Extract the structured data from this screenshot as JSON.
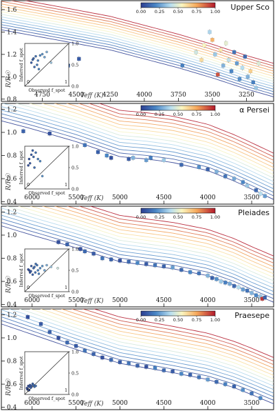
{
  "chart_data": [
    {
      "type": "scatter",
      "title": "Upper Sco",
      "xlabel": "Teff (K)",
      "ylabel": "R/R☉",
      "xlim": [
        5050,
        3050
      ],
      "ylim": [
        0.78,
        1.68
      ],
      "xticks": [
        4750,
        4500,
        4250,
        4000,
        3750,
        3500,
        3250
      ],
      "yticks": [
        0.8,
        1.0,
        1.2,
        1.4,
        1.6
      ],
      "colorbar": {
        "min": 0,
        "max": 1,
        "ticks": [
          "0.00",
          "0.25",
          "0.50",
          "0.75",
          "1.00"
        ]
      },
      "model_tracks_count": 14,
      "track_base": [
        [
          5050,
          1.42
        ],
        [
          4600,
          1.32
        ],
        [
          4250,
          1.24
        ],
        [
          4000,
          1.16
        ],
        [
          3750,
          1.08
        ],
        [
          3500,
          0.99
        ],
        [
          3250,
          0.89
        ],
        [
          3050,
          0.82
        ]
      ],
      "track_shift": 0.3,
      "points": [
        {
          "teff": 4660,
          "r": 1.21,
          "f": 0.05
        },
        {
          "teff": 4610,
          "r": 1.18,
          "f": 0.1
        },
        {
          "teff": 4560,
          "r": 1.1,
          "f": 0.12
        },
        {
          "teff": 4480,
          "r": 1.16,
          "f": 0.08
        },
        {
          "teff": 3720,
          "r": 1.1,
          "f": 0.18
        },
        {
          "teff": 3620,
          "r": 1.22,
          "f": 0.45
        },
        {
          "teff": 3580,
          "r": 1.15,
          "f": 0.62
        },
        {
          "teff": 3560,
          "r": 1.28,
          "f": 0.55
        },
        {
          "teff": 3520,
          "r": 1.4,
          "f": 0.38
        },
        {
          "teff": 3500,
          "r": 1.33,
          "f": 0.72
        },
        {
          "teff": 3480,
          "r": 1.2,
          "f": 0.35
        },
        {
          "teff": 3460,
          "r": 1.02,
          "f": 0.9
        },
        {
          "teff": 3440,
          "r": 1.24,
          "f": 0.58
        },
        {
          "teff": 3420,
          "r": 1.1,
          "f": 0.3
        },
        {
          "teff": 3400,
          "r": 1.3,
          "f": 0.5
        },
        {
          "teff": 3380,
          "r": 1.15,
          "f": 0.42
        },
        {
          "teff": 3360,
          "r": 1.05,
          "f": 0.2
        },
        {
          "teff": 3340,
          "r": 1.22,
          "f": 0.15
        },
        {
          "teff": 3320,
          "r": 1.12,
          "f": 0.25
        },
        {
          "teff": 3300,
          "r": 0.98,
          "f": 0.22
        },
        {
          "teff": 3280,
          "r": 1.08,
          "f": 0.4
        },
        {
          "teff": 3260,
          "r": 1.18,
          "f": 0.12
        },
        {
          "teff": 3240,
          "r": 1.0,
          "f": 0.3
        },
        {
          "teff": 3220,
          "r": 1.05,
          "f": 0.65
        },
        {
          "teff": 3200,
          "r": 0.95,
          "f": 0.18
        },
        {
          "teff": 3180,
          "r": 0.9,
          "f": 0.35
        },
        {
          "teff": 3160,
          "r": 1.12,
          "f": 0.48
        }
      ],
      "inset": {
        "xlabel": "Observed f_spot",
        "ylabel": "Inferred f_spot",
        "yticks": [
          "0.0",
          "0.5",
          "1.0"
        ],
        "corner_labels": [
          "0",
          "1"
        ],
        "points": [
          [
            0.15,
            0.55
          ],
          [
            0.2,
            0.65
          ],
          [
            0.25,
            0.7
          ],
          [
            0.3,
            0.6
          ],
          [
            0.35,
            0.72
          ],
          [
            0.4,
            0.75
          ],
          [
            0.28,
            0.5
          ],
          [
            0.22,
            0.45
          ],
          [
            0.45,
            0.68
          ],
          [
            0.5,
            0.8
          ],
          [
            0.18,
            0.62
          ],
          [
            0.32,
            0.4
          ],
          [
            0.6,
            0.55
          ]
        ]
      }
    },
    {
      "type": "scatter",
      "title": "α Persei",
      "xlabel": "Teff (K)",
      "ylabel": "R/R☉",
      "xlim": [
        6350,
        3250
      ],
      "ylim": [
        0.38,
        1.25
      ],
      "xticks": [
        6000,
        5500,
        5000,
        4500,
        4000,
        3500
      ],
      "yticks": [
        0.4,
        0.6,
        0.8,
        1.0,
        1.2
      ],
      "colorbar": {
        "min": 0,
        "max": 1,
        "ticks": [
          "0.00",
          "0.25",
          "0.50",
          "0.75",
          "1.00"
        ]
      },
      "model_tracks_count": 14,
      "track_base": [
        [
          6350,
          1.1
        ],
        [
          6000,
          1.03
        ],
        [
          5500,
          0.92
        ],
        [
          5000,
          0.79
        ],
        [
          4700,
          0.77
        ],
        [
          4400,
          0.74
        ],
        [
          4000,
          0.67
        ],
        [
          3700,
          0.58
        ],
        [
          3500,
          0.51
        ],
        [
          3250,
          0.42
        ]
      ],
      "track_shift": 0.4,
      "points": [
        {
          "teff": 6100,
          "r": 1.01,
          "f": 0.1
        },
        {
          "teff": 5800,
          "r": 0.99,
          "f": 0.05
        },
        {
          "teff": 5400,
          "r": 0.89,
          "f": 0.15
        },
        {
          "teff": 5250,
          "r": 0.83,
          "f": 0.1
        },
        {
          "teff": 5150,
          "r": 0.8,
          "f": 0.2
        },
        {
          "teff": 5100,
          "r": 0.78,
          "f": 0.05
        },
        {
          "teff": 4900,
          "r": 0.77,
          "f": 0.08
        },
        {
          "teff": 4850,
          "r": 0.78,
          "f": 0.3
        },
        {
          "teff": 4700,
          "r": 0.76,
          "f": 0.25
        },
        {
          "teff": 4650,
          "r": 0.78,
          "f": 0.18
        },
        {
          "teff": 4500,
          "r": 0.76,
          "f": 0.35
        },
        {
          "teff": 4300,
          "r": 0.72,
          "f": 0.12
        },
        {
          "teff": 4100,
          "r": 0.7,
          "f": 0.22
        },
        {
          "teff": 4000,
          "r": 0.68,
          "f": 0.1
        },
        {
          "teff": 3900,
          "r": 0.66,
          "f": 0.3
        },
        {
          "teff": 3800,
          "r": 0.62,
          "f": 0.15
        },
        {
          "teff": 3700,
          "r": 0.6,
          "f": 0.28
        },
        {
          "teff": 3600,
          "r": 0.57,
          "f": 0.2
        },
        {
          "teff": 3550,
          "r": 0.54,
          "f": 0.35
        },
        {
          "teff": 3450,
          "r": 0.5,
          "f": 0.12
        },
        {
          "teff": 3400,
          "r": 0.47,
          "f": 0.4
        },
        {
          "teff": 3350,
          "r": 0.45,
          "f": 0.25
        }
      ],
      "inset": {
        "xlabel": "Observed f_spot",
        "ylabel": "Inferred f_spot",
        "yticks": [
          "0.0",
          "0.5",
          "1.0"
        ],
        "corner_labels": [
          "0",
          "1"
        ],
        "points": [
          [
            0.1,
            0.7
          ],
          [
            0.15,
            0.8
          ],
          [
            0.2,
            0.75
          ],
          [
            0.25,
            0.85
          ],
          [
            0.12,
            0.6
          ],
          [
            0.3,
            0.7
          ],
          [
            0.18,
            0.9
          ],
          [
            0.22,
            0.5
          ],
          [
            0.35,
            0.65
          ],
          [
            0.08,
            0.55
          ],
          [
            0.4,
            0.3
          ]
        ]
      }
    },
    {
      "type": "scatter",
      "title": "Pleiades",
      "xlabel": "Teff (K)",
      "ylabel": "R/R☉",
      "xlim": [
        6350,
        3250
      ],
      "ylim": [
        0.38,
        1.25
      ],
      "xticks": [
        6000,
        5500,
        5000,
        4500,
        4000,
        3500
      ],
      "yticks": [
        0.4,
        0.6,
        0.8,
        1.0,
        1.2
      ],
      "colorbar": {
        "min": 0,
        "max": 1,
        "ticks": [
          "0.00",
          "0.25",
          "0.50",
          "0.75",
          "1.00"
        ]
      },
      "model_tracks_count": 14,
      "track_base": [
        [
          6350,
          1.08
        ],
        [
          6000,
          1.0
        ],
        [
          5500,
          0.89
        ],
        [
          5000,
          0.77
        ],
        [
          4700,
          0.74
        ],
        [
          4400,
          0.71
        ],
        [
          4000,
          0.65
        ],
        [
          3700,
          0.57
        ],
        [
          3500,
          0.5
        ],
        [
          3250,
          0.42
        ]
      ],
      "track_shift": 0.4,
      "points": [
        {
          "teff": 5700,
          "r": 0.94,
          "f": 0.05
        },
        {
          "teff": 5600,
          "r": 0.92,
          "f": 0.1
        },
        {
          "teff": 5450,
          "r": 0.88,
          "f": 0.05
        },
        {
          "teff": 5400,
          "r": 0.86,
          "f": 0.12
        },
        {
          "teff": 5300,
          "r": 0.84,
          "f": 0.08
        },
        {
          "teff": 5200,
          "r": 0.8,
          "f": 0.15
        },
        {
          "teff": 5100,
          "r": 0.79,
          "f": 0.1
        },
        {
          "teff": 5000,
          "r": 0.78,
          "f": 0.05
        },
        {
          "teff": 4900,
          "r": 0.77,
          "f": 0.12
        },
        {
          "teff": 4800,
          "r": 0.76,
          "f": 0.2
        },
        {
          "teff": 4700,
          "r": 0.75,
          "f": 0.08
        },
        {
          "teff": 4600,
          "r": 0.74,
          "f": 0.15
        },
        {
          "teff": 4500,
          "r": 0.73,
          "f": 0.1
        },
        {
          "teff": 4400,
          "r": 0.72,
          "f": 0.25
        },
        {
          "teff": 4300,
          "r": 0.7,
          "f": 0.12
        },
        {
          "teff": 4200,
          "r": 0.68,
          "f": 0.2
        },
        {
          "teff": 4100,
          "r": 0.67,
          "f": 0.15
        },
        {
          "teff": 4000,
          "r": 0.65,
          "f": 0.3
        },
        {
          "teff": 3950,
          "r": 0.63,
          "f": 0.1
        },
        {
          "teff": 3900,
          "r": 0.62,
          "f": 0.22
        },
        {
          "teff": 3850,
          "r": 0.6,
          "f": 0.35
        },
        {
          "teff": 3800,
          "r": 0.59,
          "f": 0.18
        },
        {
          "teff": 3750,
          "r": 0.58,
          "f": 0.28
        },
        {
          "teff": 3700,
          "r": 0.56,
          "f": 0.12
        },
        {
          "teff": 3650,
          "r": 0.55,
          "f": 0.4
        },
        {
          "teff": 3600,
          "r": 0.53,
          "f": 0.25
        },
        {
          "teff": 3550,
          "r": 0.52,
          "f": 0.15
        },
        {
          "teff": 3500,
          "r": 0.5,
          "f": 0.3
        },
        {
          "teff": 3450,
          "r": 0.48,
          "f": 0.2
        },
        {
          "teff": 3400,
          "r": 0.47,
          "f": 0.35
        },
        {
          "teff": 3380,
          "r": 0.45,
          "f": 0.95
        },
        {
          "teff": 3350,
          "r": 0.46,
          "f": 0.1
        }
      ],
      "inset": {
        "xlabel": "Observed f_spot",
        "ylabel": "Inferred f_spot",
        "yticks": [
          "0.0",
          "0.5",
          "1.0"
        ],
        "corner_labels": [
          "0",
          "1"
        ],
        "points": [
          [
            0.1,
            0.5
          ],
          [
            0.15,
            0.6
          ],
          [
            0.2,
            0.55
          ],
          [
            0.25,
            0.65
          ],
          [
            0.3,
            0.5
          ],
          [
            0.12,
            0.45
          ],
          [
            0.18,
            0.4
          ],
          [
            0.22,
            0.58
          ],
          [
            0.28,
            0.62
          ],
          [
            0.35,
            0.55
          ],
          [
            0.4,
            0.6
          ],
          [
            0.08,
            0.52
          ],
          [
            0.14,
            0.48
          ],
          [
            0.24,
            0.45
          ],
          [
            0.32,
            0.42
          ],
          [
            0.45,
            0.5
          ],
          [
            0.5,
            0.62
          ],
          [
            0.6,
            0.58
          ],
          [
            0.75,
            0.55
          ]
        ]
      }
    },
    {
      "type": "scatter",
      "title": "Praesepe",
      "xlabel": "Teff (K)",
      "ylabel": "R/R☉",
      "xlim": [
        6350,
        3250
      ],
      "ylim": [
        0.38,
        1.25
      ],
      "xticks": [
        6000,
        5500,
        5000,
        4500,
        4000,
        3500
      ],
      "yticks": [
        0.4,
        0.6,
        0.8,
        1.0,
        1.2
      ],
      "colorbar": {
        "min": 0,
        "max": 1,
        "ticks": [
          "0.00",
          "0.25",
          "0.50",
          "0.75",
          "1.00"
        ]
      },
      "model_tracks_count": 14,
      "track_base": [
        [
          6350,
          1.12
        ],
        [
          6000,
          1.03
        ],
        [
          5500,
          0.9
        ],
        [
          5000,
          0.78
        ],
        [
          4700,
          0.74
        ],
        [
          4400,
          0.7
        ],
        [
          4000,
          0.64
        ],
        [
          3700,
          0.57
        ],
        [
          3500,
          0.51
        ],
        [
          3250,
          0.43
        ]
      ],
      "track_shift": 0.4,
      "points": [
        {
          "teff": 6050,
          "r": 1.18,
          "f": 0.05
        },
        {
          "teff": 5900,
          "r": 1.12,
          "f": 0.08
        },
        {
          "teff": 5800,
          "r": 1.05,
          "f": 0.1
        },
        {
          "teff": 5700,
          "r": 1.0,
          "f": 0.05
        },
        {
          "teff": 5600,
          "r": 0.96,
          "f": 0.12
        },
        {
          "teff": 5500,
          "r": 0.93,
          "f": 0.08
        },
        {
          "teff": 5400,
          "r": 0.89,
          "f": 0.15
        },
        {
          "teff": 5300,
          "r": 0.86,
          "f": 0.1
        },
        {
          "teff": 5200,
          "r": 0.83,
          "f": 0.05
        },
        {
          "teff": 5100,
          "r": 0.81,
          "f": 0.12
        },
        {
          "teff": 5000,
          "r": 0.79,
          "f": 0.08
        },
        {
          "teff": 4900,
          "r": 0.78,
          "f": 0.15
        },
        {
          "teff": 4800,
          "r": 0.76,
          "f": 0.1
        },
        {
          "teff": 4700,
          "r": 0.75,
          "f": 0.05
        },
        {
          "teff": 4600,
          "r": 0.74,
          "f": 0.18
        },
        {
          "teff": 4500,
          "r": 0.72,
          "f": 0.12
        },
        {
          "teff": 4400,
          "r": 0.71,
          "f": 0.08
        },
        {
          "teff": 4300,
          "r": 0.69,
          "f": 0.2
        },
        {
          "teff": 4200,
          "r": 0.68,
          "f": 0.1
        },
        {
          "teff": 4100,
          "r": 0.66,
          "f": 0.15
        },
        {
          "teff": 4000,
          "r": 0.64,
          "f": 0.25
        },
        {
          "teff": 3900,
          "r": 0.62,
          "f": 0.12
        },
        {
          "teff": 3800,
          "r": 0.6,
          "f": 0.18
        },
        {
          "teff": 3700,
          "r": 0.58,
          "f": 0.1
        },
        {
          "teff": 3600,
          "r": 0.55,
          "f": 0.22
        },
        {
          "teff": 3500,
          "r": 0.52,
          "f": 0.15
        },
        {
          "teff": 3400,
          "r": 0.48,
          "f": 0.2
        }
      ],
      "inset": {
        "xlabel": "Observed f_spot",
        "ylabel": "Inferred f_spot",
        "yticks": [
          "0.0",
          "0.5",
          "1.0"
        ],
        "corner_labels": [
          "0",
          "1"
        ],
        "points": [
          [
            0.05,
            0.15
          ],
          [
            0.08,
            0.2
          ],
          [
            0.1,
            0.18
          ],
          [
            0.12,
            0.22
          ],
          [
            0.15,
            0.2
          ],
          [
            0.18,
            0.25
          ],
          [
            0.2,
            0.22
          ],
          [
            0.06,
            0.12
          ],
          [
            0.14,
            0.16
          ],
          [
            0.22,
            0.18
          ],
          [
            0.25,
            0.2
          ],
          [
            0.1,
            0.1
          ]
        ]
      }
    }
  ]
}
